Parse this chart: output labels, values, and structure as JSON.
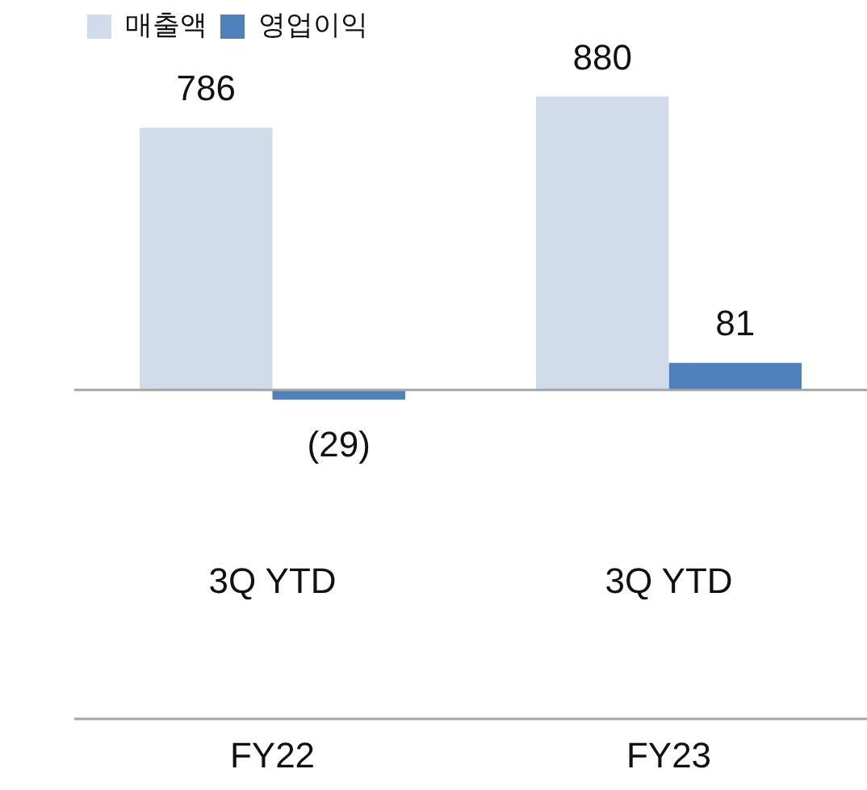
{
  "chart_data": {
    "type": "bar",
    "categories": [
      "3Q YTD",
      "3Q YTD"
    ],
    "series": [
      {
        "name": "매출액",
        "color": "#d0dcea",
        "values": [
          786,
          880
        ],
        "value_labels": [
          "786",
          "880"
        ]
      },
      {
        "name": "영업이익",
        "color": "#4f81bd",
        "values": [
          -29,
          81
        ],
        "value_labels": [
          "(29)",
          "81"
        ]
      }
    ],
    "legend": "top left",
    "annotations": [
      "FY22",
      "FY23"
    ]
  }
}
